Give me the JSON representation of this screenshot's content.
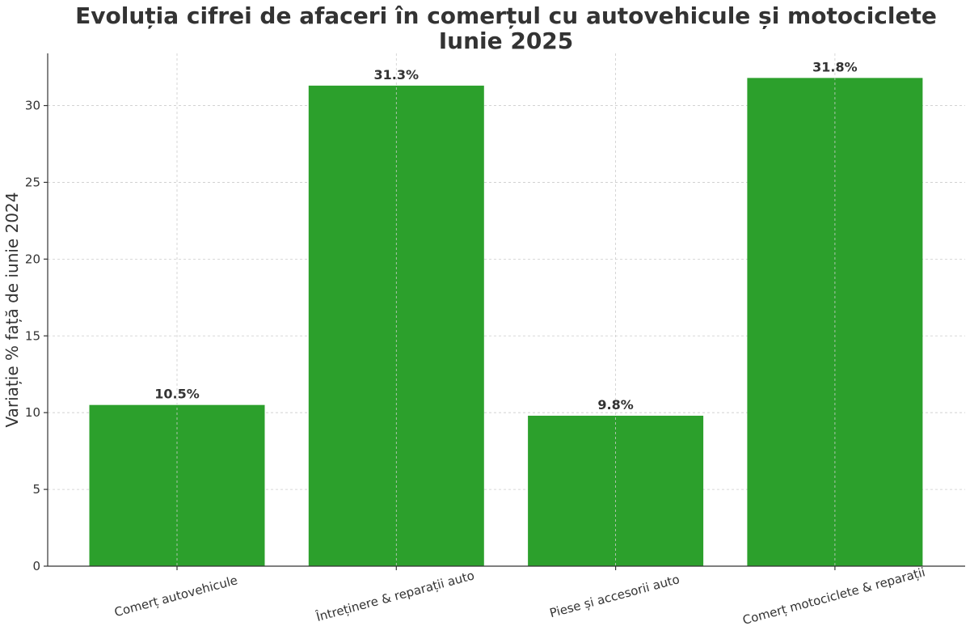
{
  "chart_data": {
    "type": "bar",
    "title": "Evoluția cifrei de afaceri în comerțul cu autovehicule și motociclete",
    "subtitle": "Iunie 2025",
    "xlabel": "",
    "ylabel": "Variație % față de iunie 2024",
    "categories": [
      "Comerț autovehicule",
      "Întreținere & reparații auto",
      "Piese și accesorii auto",
      "Comerț motociclete & reparații"
    ],
    "values": [
      10.5,
      31.3,
      9.8,
      31.8
    ],
    "data_labels": [
      "10.5%",
      "31.3%",
      "9.8%",
      "31.8%"
    ],
    "ylim": [
      0,
      33.4
    ],
    "yticks": [
      0,
      5,
      10,
      15,
      20,
      25,
      30
    ],
    "grid": true,
    "bar_color": "#2ca02c"
  }
}
